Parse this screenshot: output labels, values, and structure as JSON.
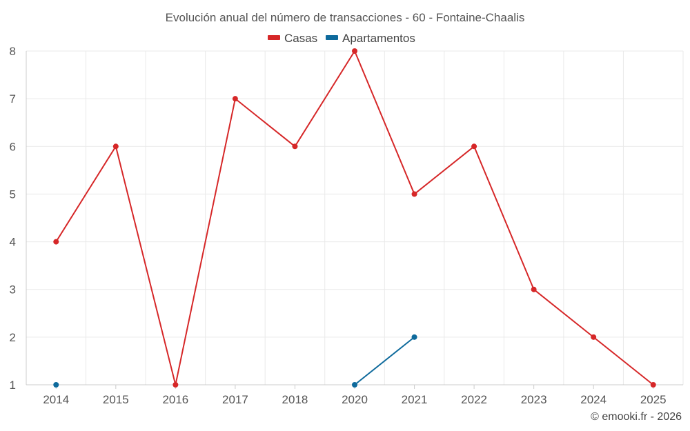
{
  "chart_data": {
    "type": "line",
    "title": "Evolución anual del número de transacciones - 60 - Fontaine-Chaalis",
    "categories": [
      "2014",
      "2015",
      "2016",
      "2017",
      "2018",
      "2020",
      "2021",
      "2022",
      "2023",
      "2024",
      "2025"
    ],
    "series": [
      {
        "name": "Casas",
        "color": "#d62728",
        "values": [
          4,
          6,
          1,
          7,
          6,
          8,
          5,
          6,
          3,
          2,
          1
        ]
      },
      {
        "name": "Apartamentos",
        "color": "#0e6a9c",
        "values": [
          1,
          null,
          null,
          null,
          null,
          1,
          2,
          null,
          null,
          null,
          null
        ]
      }
    ],
    "ylim": [
      1,
      8
    ],
    "yticks": [
      1,
      2,
      3,
      4,
      5,
      6,
      7,
      8
    ],
    "grid": true,
    "legend": "top-center",
    "xlabel": "",
    "ylabel": ""
  },
  "footer": {
    "credit": "© emooki.fr - 2026"
  }
}
